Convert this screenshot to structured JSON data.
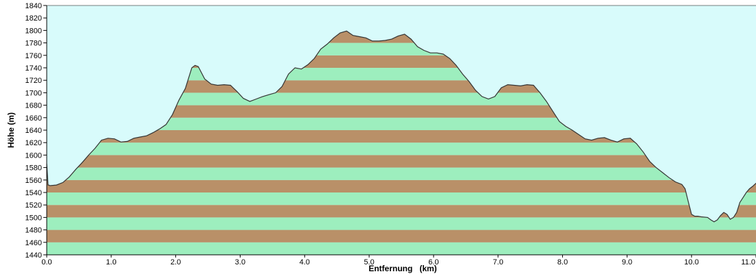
{
  "chart_data": {
    "type": "area",
    "title": "",
    "xlabel": "Entfernung   (km)",
    "ylabel": "Höhe (m)",
    "xlim": [
      0.0,
      11.0
    ],
    "ylim": [
      1440,
      1840
    ],
    "x_ticks": [
      "0.0",
      "1.0",
      "2.0",
      "3.0",
      "4.0",
      "5.0",
      "6.0",
      "7.0",
      "8.0",
      "9.0",
      "10.0",
      "11.0"
    ],
    "y_ticks": [
      "1440",
      "1460",
      "1480",
      "1500",
      "1520",
      "1540",
      "1560",
      "1580",
      "1600",
      "1620",
      "1640",
      "1660",
      "1680",
      "1700",
      "1720",
      "1740",
      "1760",
      "1780",
      "1800",
      "1820",
      "1840"
    ],
    "grid": false,
    "colors": {
      "sky": "#d8fbfb",
      "band_green": "#9deebe",
      "band_brown": "#b99068",
      "profile_line": "#333333",
      "axis": "#000000"
    },
    "x": [
      0.0,
      0.02,
      0.03,
      0.05,
      0.15,
      0.25,
      0.35,
      0.45,
      0.55,
      0.65,
      0.75,
      0.85,
      0.95,
      1.05,
      1.15,
      1.25,
      1.35,
      1.45,
      1.55,
      1.65,
      1.75,
      1.85,
      1.95,
      2.05,
      2.15,
      2.25,
      2.3,
      2.35,
      2.45,
      2.55,
      2.65,
      2.75,
      2.85,
      2.95,
      3.05,
      3.15,
      3.25,
      3.35,
      3.45,
      3.55,
      3.65,
      3.75,
      3.85,
      3.95,
      4.05,
      4.15,
      4.25,
      4.35,
      4.45,
      4.55,
      4.65,
      4.75,
      4.85,
      4.95,
      5.05,
      5.15,
      5.25,
      5.35,
      5.45,
      5.55,
      5.65,
      5.75,
      5.85,
      5.95,
      6.05,
      6.15,
      6.25,
      6.35,
      6.45,
      6.55,
      6.65,
      6.75,
      6.85,
      6.95,
      7.05,
      7.15,
      7.25,
      7.35,
      7.45,
      7.55,
      7.65,
      7.75,
      7.85,
      7.95,
      8.05,
      8.15,
      8.25,
      8.35,
      8.45,
      8.55,
      8.65,
      8.75,
      8.85,
      8.95,
      9.05,
      9.15,
      9.25,
      9.35,
      9.45,
      9.55,
      9.65,
      9.75,
      9.85,
      9.9,
      9.95,
      10.0,
      10.05,
      10.1,
      10.15,
      10.25,
      10.3,
      10.35,
      10.4,
      10.45,
      10.5,
      10.55,
      10.6,
      10.65,
      10.7,
      10.75,
      10.8,
      10.85,
      10.9,
      10.95,
      11.0
    ],
    "y": [
      1586,
      1552,
      1552,
      1551,
      1552,
      1556,
      1565,
      1577,
      1588,
      1600,
      1611,
      1624,
      1627,
      1626,
      1621,
      1622,
      1627,
      1629,
      1631,
      1636,
      1642,
      1649,
      1665,
      1688,
      1707,
      1740,
      1744,
      1742,
      1722,
      1714,
      1712,
      1713,
      1712,
      1702,
      1691,
      1686,
      1690,
      1694,
      1697,
      1700,
      1710,
      1730,
      1740,
      1738,
      1745,
      1755,
      1770,
      1778,
      1788,
      1796,
      1799,
      1792,
      1790,
      1788,
      1783,
      1783,
      1784,
      1786,
      1791,
      1794,
      1786,
      1774,
      1768,
      1764,
      1764,
      1762,
      1755,
      1744,
      1730,
      1718,
      1704,
      1694,
      1690,
      1694,
      1708,
      1713,
      1712,
      1711,
      1713,
      1712,
      1700,
      1686,
      1670,
      1654,
      1646,
      1640,
      1633,
      1626,
      1624,
      1627,
      1628,
      1624,
      1621,
      1626,
      1627,
      1618,
      1605,
      1590,
      1580,
      1572,
      1564,
      1557,
      1553,
      1546,
      1525,
      1505,
      1502,
      1502,
      1501,
      1500,
      1496,
      1493,
      1496,
      1503,
      1508,
      1505,
      1497,
      1500,
      1508,
      1524,
      1532,
      1540,
      1546,
      1550,
      1555
    ]
  }
}
